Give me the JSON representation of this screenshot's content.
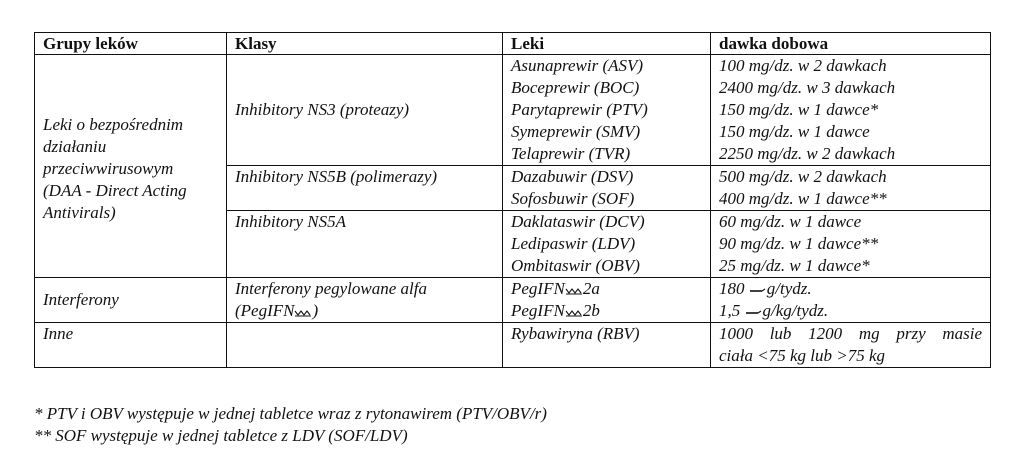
{
  "header": {
    "col1": "Grupy leków",
    "col2": "Klasy",
    "col3": "Leki",
    "col4": "dawka dobowa"
  },
  "daa": {
    "group_label": "Leki o bezpośrednim działaniu przeciwwirusowym (DAA - Direct Acting Antivirals)",
    "group_lines": [
      "Leki o bezpośrednim",
      "działaniu",
      "przeciwwirusowym",
      "(DAA - Direct Acting",
      "Antivirals)"
    ],
    "classes": [
      {
        "name": "Inhibitory NS3 (proteazy)",
        "drugs": [
          {
            "name": "Asunaprewir (ASV)",
            "dose": "100 mg/dz. w 2 dawkach"
          },
          {
            "name": "Boceprewir (BOC)",
            "dose": "2400 mg/dz. w 3 dawkach"
          },
          {
            "name": "Parytaprewir (PTV)",
            "dose": "150 mg/dz. w 1 dawce*"
          },
          {
            "name": "Symeprewir (SMV)",
            "dose": "150 mg/dz. w 1 dawce"
          },
          {
            "name": "Telaprewir (TVR)",
            "dose": "2250 mg/dz. w 2 dawkach"
          }
        ]
      },
      {
        "name": "Inhibitory NS5B (polimerazy)",
        "drugs": [
          {
            "name": "Dazabuwir (DSV)",
            "dose": "500 mg/dz. w 2 dawkach"
          },
          {
            "name": "Sofosbuwir (SOF)",
            "dose": "400 mg/dz. w 1 dawce**"
          }
        ]
      },
      {
        "name": "Inhibitory NS5A",
        "drugs": [
          {
            "name": "Daklataswir (DCV)",
            "dose": "60 mg/dz. w 1 dawce"
          },
          {
            "name": "Ledipaswir (LDV)",
            "dose": "90 mg/dz. w 1 dawce**"
          },
          {
            "name": "Ombitaswir (OBV)",
            "dose": "25 mg/dz. w 1 dawce*"
          }
        ]
      }
    ]
  },
  "interferony": {
    "group_label": "Interferony",
    "class_line1": "Interferony pegylowane alfa",
    "class_line2_prefix": "(PegIFN",
    "class_line2_suffix": ")",
    "drug1_prefix": "PegIFN",
    "drug1_suffix": "2a",
    "drug2_prefix": "PegIFN",
    "drug2_suffix": "2b",
    "dose1_prefix": "180 ",
    "dose1_suffix": "g/tydz.",
    "dose2_prefix": "1,5 ",
    "dose2_suffix": "g/kg/tydz."
  },
  "inne": {
    "group_label": "Inne",
    "class_label": "",
    "drug": "Rybawiryna (RBV)",
    "dose_line1": "1000 lub 1200 mg przy masie",
    "dose_line2": "ciała <75 kg lub >75 kg"
  },
  "footnotes": {
    "note1": "* PTV i OBV występuje w jednej tabletce wraz z rytonawirem (PTV/OBV/r)",
    "note2": "** SOF występuje w jednej tabletce z LDV (SOF/LDV)"
  }
}
